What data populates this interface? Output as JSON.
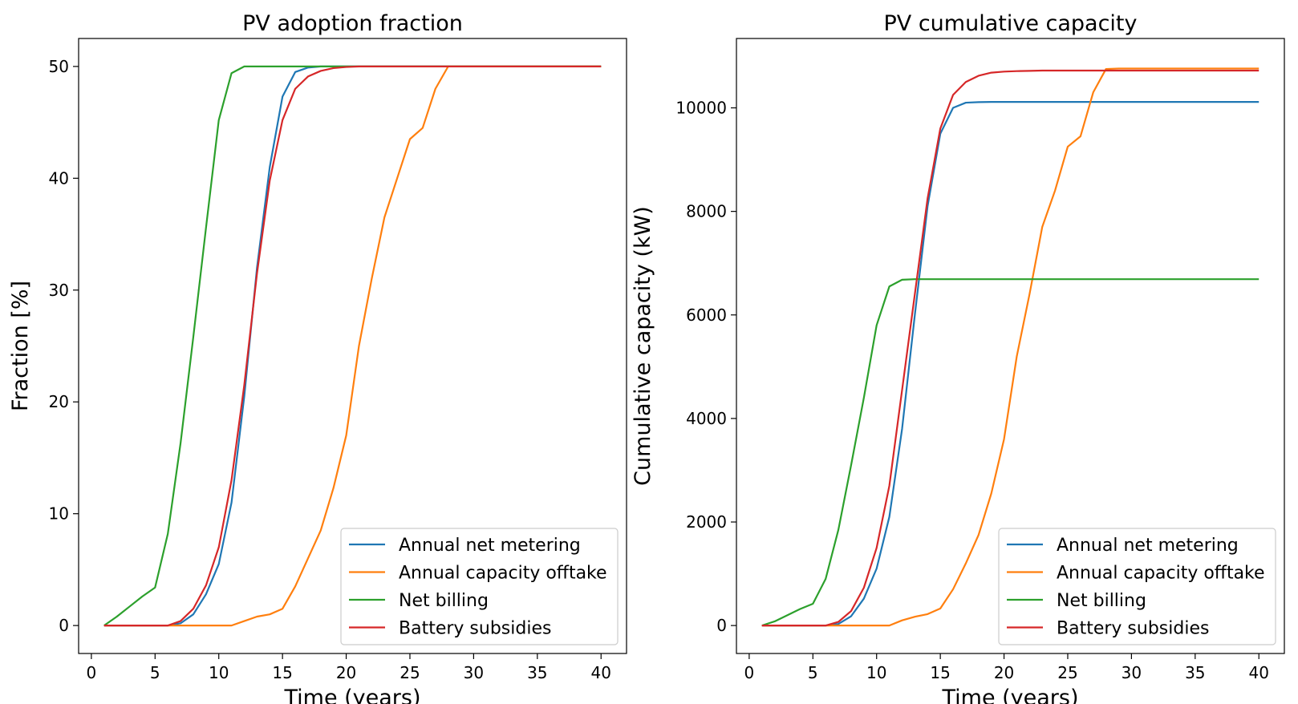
{
  "chart_data": [
    {
      "type": "line",
      "title": "PV adoption fraction",
      "xlabel": "Time (years)",
      "ylabel": "Fraction [%]",
      "xlim": [
        -1,
        42
      ],
      "ylim": [
        -2.5,
        52.5
      ],
      "xticks": [
        0,
        5,
        10,
        15,
        20,
        25,
        30,
        35,
        40
      ],
      "yticks": [
        0,
        10,
        20,
        30,
        40,
        50
      ],
      "grid": false,
      "legend_position": "bottom-right",
      "x": [
        1,
        2,
        3,
        4,
        5,
        6,
        7,
        8,
        9,
        10,
        11,
        12,
        13,
        14,
        15,
        16,
        17,
        18,
        19,
        20,
        21,
        22,
        23,
        24,
        25,
        26,
        27,
        28,
        29,
        30,
        31,
        32,
        33,
        34,
        35,
        36,
        37,
        38,
        39,
        40
      ],
      "series": [
        {
          "name": "Annual net metering",
          "color": "#1f77b4",
          "values": [
            0,
            0,
            0,
            0,
            0,
            0,
            0.2,
            1,
            2.8,
            5.5,
            11,
            20.5,
            32,
            41,
            47.3,
            49.5,
            49.9,
            50,
            50,
            50,
            50,
            50,
            50,
            50,
            50,
            50,
            50,
            50,
            50,
            50,
            50,
            50,
            50,
            50,
            50,
            50,
            50,
            50,
            50,
            50
          ]
        },
        {
          "name": "Annual capacity offtake",
          "color": "#ff7f0e",
          "values": [
            0,
            0,
            0,
            0,
            0,
            0,
            0,
            0,
            0,
            0,
            0,
            0.4,
            0.8,
            1,
            1.5,
            3.5,
            6,
            8.5,
            12.3,
            17,
            25,
            31,
            36.5,
            40,
            43.5,
            44.5,
            48,
            50,
            50,
            50,
            50,
            50,
            50,
            50,
            50,
            50,
            50,
            50,
            50,
            50
          ]
        },
        {
          "name": "Net billing",
          "color": "#2ca02c",
          "values": [
            0,
            0.8,
            1.7,
            2.6,
            3.4,
            8.2,
            16.3,
            25.8,
            35.6,
            45.2,
            49.4,
            50,
            50,
            50,
            50,
            50,
            50,
            50,
            50,
            50,
            50,
            50,
            50,
            50,
            50,
            50,
            50,
            50,
            50,
            50,
            50,
            50,
            50,
            50,
            50,
            50,
            50,
            50,
            50,
            50
          ]
        },
        {
          "name": "Battery subsidies",
          "color": "#d62728",
          "values": [
            0,
            0,
            0,
            0,
            0,
            0,
            0.4,
            1.5,
            3.6,
            7,
            13,
            21.5,
            31.5,
            39.8,
            45.2,
            48,
            49.1,
            49.6,
            49.85,
            49.95,
            50,
            50,
            50,
            50,
            50,
            50,
            50,
            50,
            50,
            50,
            50,
            50,
            50,
            50,
            50,
            50,
            50,
            50,
            50,
            50
          ]
        }
      ]
    },
    {
      "type": "line",
      "title": "PV cumulative capacity",
      "xlabel": "Time (years)",
      "ylabel": "Cumulative capacity (kW)",
      "xlim": [
        -1,
        42
      ],
      "ylim": [
        -540,
        11340
      ],
      "xticks": [
        0,
        5,
        10,
        15,
        20,
        25,
        30,
        35,
        40
      ],
      "yticks": [
        0,
        2000,
        4000,
        6000,
        8000,
        10000
      ],
      "grid": false,
      "legend_position": "bottom-right",
      "x": [
        1,
        2,
        3,
        4,
        5,
        6,
        7,
        8,
        9,
        10,
        11,
        12,
        13,
        14,
        15,
        16,
        17,
        18,
        19,
        20,
        21,
        22,
        23,
        24,
        25,
        26,
        27,
        28,
        29,
        30,
        31,
        32,
        33,
        34,
        35,
        36,
        37,
        38,
        39,
        40
      ],
      "series": [
        {
          "name": "Annual net metering",
          "color": "#1f77b4",
          "values": [
            0,
            0,
            0,
            0,
            0,
            0,
            30,
            180,
            520,
            1100,
            2100,
            3800,
            6000,
            8100,
            9500,
            10000,
            10100,
            10110,
            10115,
            10115,
            10115,
            10115,
            10115,
            10115,
            10115,
            10115,
            10115,
            10115,
            10115,
            10115,
            10115,
            10115,
            10115,
            10115,
            10115,
            10115,
            10115,
            10115,
            10115,
            10115
          ]
        },
        {
          "name": "Annual capacity offtake",
          "color": "#ff7f0e",
          "values": [
            0,
            0,
            0,
            0,
            0,
            0,
            0,
            0,
            0,
            0,
            0,
            100,
            170,
            220,
            330,
            700,
            1200,
            1750,
            2550,
            3600,
            5200,
            6400,
            7700,
            8400,
            9250,
            9450,
            10300,
            10750,
            10760,
            10760,
            10760,
            10760,
            10760,
            10760,
            10760,
            10760,
            10760,
            10760,
            10760,
            10760
          ]
        },
        {
          "name": "Net billing",
          "color": "#2ca02c",
          "values": [
            0,
            80,
            200,
            320,
            420,
            900,
            1850,
            3100,
            4400,
            5800,
            6550,
            6680,
            6690,
            6690,
            6690,
            6690,
            6690,
            6690,
            6690,
            6690,
            6690,
            6690,
            6690,
            6690,
            6690,
            6690,
            6690,
            6690,
            6690,
            6690,
            6690,
            6690,
            6690,
            6690,
            6690,
            6690,
            6690,
            6690,
            6690,
            6690
          ]
        },
        {
          "name": "Battery subsidies",
          "color": "#d62728",
          "values": [
            0,
            0,
            0,
            0,
            0,
            0,
            70,
            280,
            730,
            1500,
            2700,
            4550,
            6400,
            8250,
            9600,
            10250,
            10500,
            10620,
            10680,
            10700,
            10710,
            10715,
            10720,
            10720,
            10720,
            10720,
            10720,
            10720,
            10720,
            10720,
            10720,
            10720,
            10720,
            10720,
            10720,
            10720,
            10720,
            10720,
            10720,
            10720
          ]
        }
      ]
    }
  ]
}
